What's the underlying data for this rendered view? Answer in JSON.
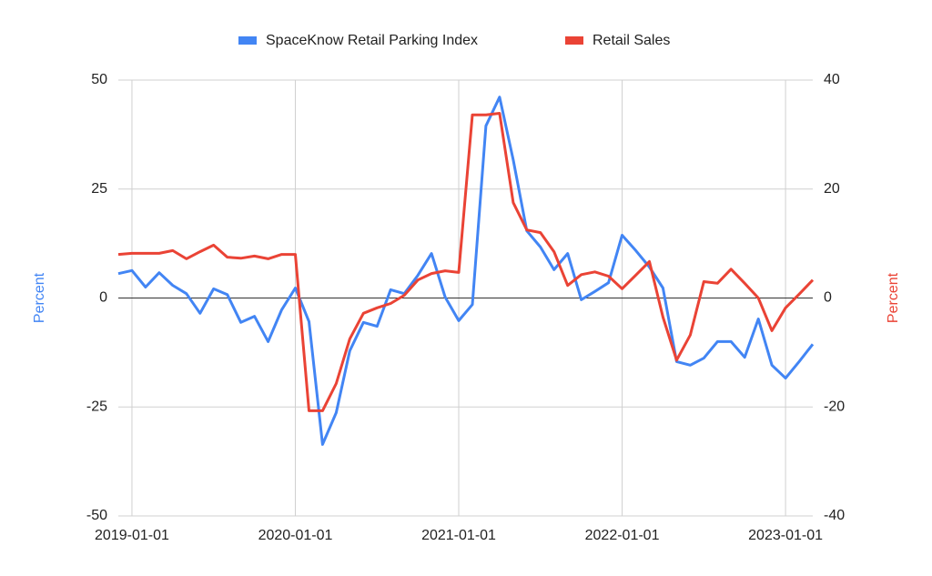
{
  "chart_data": {
    "type": "line",
    "x": [
      "2018-12-01",
      "2019-01-01",
      "2019-02-01",
      "2019-03-01",
      "2019-04-01",
      "2019-05-01",
      "2019-06-01",
      "2019-07-01",
      "2019-08-01",
      "2019-09-01",
      "2019-10-01",
      "2019-11-01",
      "2019-12-01",
      "2020-01-01",
      "2020-02-01",
      "2020-03-01",
      "2020-04-01",
      "2020-05-01",
      "2020-06-01",
      "2020-07-01",
      "2020-08-01",
      "2020-09-01",
      "2020-10-01",
      "2020-11-01",
      "2020-12-01",
      "2021-01-01",
      "2021-02-01",
      "2021-03-01",
      "2021-04-01",
      "2021-05-01",
      "2021-06-01",
      "2021-07-01",
      "2021-08-01",
      "2021-09-01",
      "2021-10-01",
      "2021-11-01",
      "2021-12-01",
      "2022-01-01",
      "2022-02-01",
      "2022-03-01",
      "2022-04-01",
      "2022-05-01",
      "2022-06-01",
      "2022-07-01",
      "2022-08-01",
      "2022-09-01",
      "2022-10-01",
      "2022-11-01",
      "2022-12-01",
      "2023-01-01",
      "2023-02-01",
      "2023-03-01"
    ],
    "series": [
      {
        "name": "SpaceKnow Retail Parking Index",
        "color": "#4285f4",
        "axis": "y",
        "values": [
          5.6,
          6.3,
          2.5,
          5.8,
          2.9,
          1.0,
          -3.5,
          2.1,
          0.8,
          -5.6,
          -4.2,
          -10,
          -2.7,
          2.3,
          -5.4,
          -33.6,
          -26.3,
          -12.1,
          -5.6,
          -6.5,
          1.9,
          1.0,
          5.2,
          10.2,
          0.2,
          -5.2,
          -1.5,
          39.5,
          46.1,
          31.7,
          15.4,
          11.7,
          6.5,
          10.2,
          -0.4,
          1.5,
          3.5,
          14.4,
          10.9,
          7.1,
          2.3,
          -14.6,
          -15.4,
          -13.8,
          -10.0,
          -10.0,
          -13.6,
          -4.8,
          -15.4,
          -18.4,
          -14.6,
          -10.6
        ]
      },
      {
        "name": "Retail Sales",
        "color": "#ea4335",
        "axis": "y2",
        "values": [
          8.0,
          8.2,
          8.2,
          8.2,
          8.7,
          7.2,
          8.5,
          9.7,
          7.5,
          7.3,
          7.7,
          7.2,
          8.0,
          8.0,
          -20.7,
          -20.7,
          -15.7,
          -7.5,
          -2.8,
          -1.8,
          -1.0,
          0.5,
          3.3,
          4.5,
          5.0,
          4.7,
          33.6,
          33.6,
          33.9,
          17.5,
          12.5,
          12.0,
          8.5,
          2.3,
          4.3,
          4.8,
          4.0,
          1.7,
          4.2,
          6.7,
          -3.5,
          -11.4,
          -6.8,
          3.0,
          2.7,
          5.3,
          2.7,
          0,
          -6.0,
          -1.8,
          0.7,
          3.3
        ]
      }
    ],
    "xlim": [
      "2018-12-01",
      "2023-03-01"
    ],
    "xticks": [
      "2019-01-01",
      "2020-01-01",
      "2021-01-01",
      "2022-01-01",
      "2023-01-01"
    ],
    "ylim": [
      -50,
      50
    ],
    "yticks": [
      -50,
      -25,
      0,
      25,
      50
    ],
    "y2lim": [
      -40,
      40
    ],
    "y2ticks": [
      -40,
      -20,
      0,
      20,
      40
    ],
    "ylabel": "Percent",
    "y2label": "Percent",
    "grid": true,
    "legend": "top"
  }
}
